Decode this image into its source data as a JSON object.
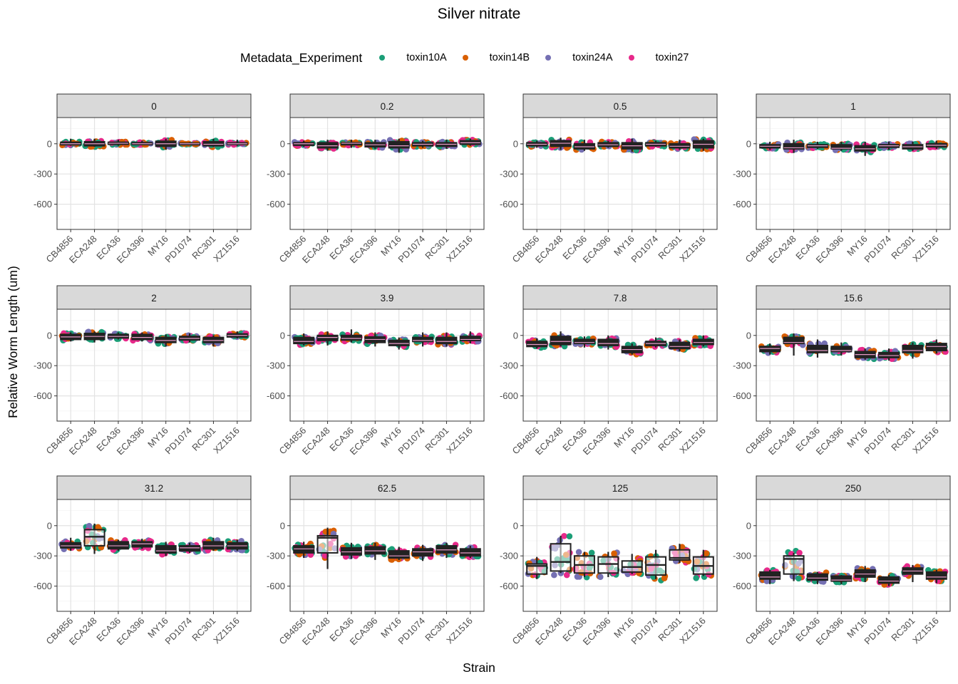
{
  "chart_data": {
    "type": "boxplot",
    "title": "Silver nitrate",
    "xlabel": "Strain",
    "ylabel": "Relative Worm Length (um)",
    "ylim": [
      -850,
      260
    ],
    "yticks": [
      0,
      -300,
      -600
    ],
    "ytick_labels": [
      "0",
      "-300",
      "-600"
    ],
    "grid": true,
    "legend": {
      "title": "Metadata_Experiment",
      "position": "top",
      "entries": [
        {
          "name": "toxin10A",
          "color": "#1B9E77"
        },
        {
          "name": "toxin14B",
          "color": "#D95F02"
        },
        {
          "name": "toxin24A",
          "color": "#7570B3"
        },
        {
          "name": "toxin27",
          "color": "#E7298A"
        }
      ]
    },
    "categories": [
      "CB4856",
      "ECA248",
      "ECA36",
      "ECA396",
      "MY16",
      "PD1074",
      "RC301",
      "XZ1516"
    ],
    "facets": [
      {
        "label": "0",
        "boxes": [
          [
            -20,
            -10,
            0,
            15,
            50
          ],
          [
            -30,
            -20,
            0,
            20,
            50
          ],
          [
            -20,
            -5,
            5,
            15,
            40
          ],
          [
            -15,
            -8,
            0,
            10,
            30
          ],
          [
            -60,
            -25,
            0,
            25,
            50
          ],
          [
            -10,
            -5,
            0,
            5,
            15
          ],
          [
            -30,
            -20,
            -5,
            20,
            50
          ],
          [
            -20,
            -5,
            0,
            8,
            40
          ]
        ]
      },
      {
        "label": "0.2",
        "boxes": [
          [
            -30,
            -15,
            0,
            10,
            30
          ],
          [
            -70,
            -40,
            -20,
            10,
            40
          ],
          [
            -40,
            -10,
            5,
            10,
            40
          ],
          [
            -50,
            -30,
            -10,
            10,
            40
          ],
          [
            -90,
            -40,
            -20,
            20,
            50
          ],
          [
            -40,
            -20,
            -5,
            10,
            30
          ],
          [
            -50,
            -25,
            -5,
            10,
            40
          ],
          [
            -20,
            -5,
            10,
            30,
            50
          ]
        ]
      },
      {
        "label": "0.5",
        "boxes": [
          [
            -40,
            -20,
            -5,
            10,
            30
          ],
          [
            -60,
            -25,
            5,
            30,
            60
          ],
          [
            -70,
            -50,
            -30,
            0,
            40
          ],
          [
            -40,
            -25,
            -10,
            10,
            30
          ],
          [
            -80,
            -50,
            -20,
            10,
            50
          ],
          [
            -30,
            -20,
            -5,
            10,
            30
          ],
          [
            -60,
            -40,
            -25,
            0,
            40
          ],
          [
            -70,
            -40,
            -5,
            30,
            50
          ]
        ]
      },
      {
        "label": "1",
        "boxes": [
          [
            -60,
            -40,
            -25,
            -10,
            20
          ],
          [
            -90,
            -50,
            -40,
            0,
            40
          ],
          [
            -50,
            -35,
            -20,
            -10,
            20
          ],
          [
            -70,
            -50,
            -45,
            -10,
            20
          ],
          [
            -120,
            -70,
            -50,
            -20,
            20
          ],
          [
            -60,
            -35,
            -20,
            -10,
            20
          ],
          [
            -70,
            -50,
            -30,
            -10,
            20
          ],
          [
            -50,
            -30,
            -15,
            0,
            30
          ]
        ]
      },
      {
        "label": "2",
        "boxes": [
          [
            -60,
            -40,
            -15,
            10,
            30
          ],
          [
            -70,
            -40,
            -10,
            20,
            40
          ],
          [
            -40,
            -25,
            -10,
            10,
            30
          ],
          [
            -60,
            -40,
            -20,
            10,
            30
          ],
          [
            -110,
            -70,
            -50,
            -20,
            10
          ],
          [
            -70,
            -45,
            -30,
            -10,
            20
          ],
          [
            -110,
            -70,
            -50,
            -20,
            0
          ],
          [
            -30,
            -15,
            0,
            15,
            40
          ]
        ]
      },
      {
        "label": "3.9",
        "boxes": [
          [
            -100,
            -80,
            -60,
            -20,
            20
          ],
          [
            -100,
            -50,
            -20,
            0,
            40
          ],
          [
            -70,
            -45,
            -30,
            0,
            60
          ],
          [
            -110,
            -70,
            -40,
            -15,
            30
          ],
          [
            -140,
            -100,
            -80,
            -50,
            -20
          ],
          [
            -110,
            -60,
            -50,
            -20,
            30
          ],
          [
            -110,
            -80,
            -60,
            -20,
            30
          ],
          [
            -80,
            -50,
            -40,
            -10,
            40
          ]
        ]
      },
      {
        "label": "7.8",
        "boxes": [
          [
            -130,
            -110,
            -90,
            -60,
            -30
          ],
          [
            -110,
            -90,
            -60,
            -10,
            40
          ],
          [
            -120,
            -80,
            -70,
            -40,
            -10
          ],
          [
            -140,
            -100,
            -80,
            -40,
            0
          ],
          [
            -190,
            -170,
            -140,
            -110,
            -80
          ],
          [
            -120,
            -100,
            -80,
            -60,
            -20
          ],
          [
            -160,
            -130,
            -110,
            -70,
            -40
          ],
          [
            -110,
            -90,
            -70,
            -40,
            0
          ]
        ]
      },
      {
        "label": "15.6",
        "boxes": [
          [
            -190,
            -160,
            -130,
            -110,
            -80
          ],
          [
            -200,
            -80,
            -70,
            -20,
            20
          ],
          [
            -220,
            -170,
            -150,
            -100,
            -40
          ],
          [
            -200,
            -160,
            -150,
            -110,
            -70
          ],
          [
            -240,
            -220,
            -190,
            -160,
            -130
          ],
          [
            -250,
            -220,
            -200,
            -170,
            -130
          ],
          [
            -230,
            -170,
            -150,
            -100,
            -70
          ],
          [
            -180,
            -150,
            -110,
            -80,
            -40
          ]
        ]
      },
      {
        "label": "31.2",
        "boxes": [
          [
            -250,
            -220,
            -200,
            -170,
            -120
          ],
          [
            -280,
            -200,
            -110,
            -40,
            20
          ],
          [
            -250,
            -230,
            -200,
            -160,
            -140
          ],
          [
            -230,
            -210,
            -180,
            -160,
            -130
          ],
          [
            -300,
            -270,
            -250,
            -200,
            -160
          ],
          [
            -270,
            -250,
            -220,
            -200,
            -170
          ],
          [
            -250,
            -230,
            -200,
            -160,
            -120
          ],
          [
            -250,
            -230,
            -200,
            -170,
            -140
          ]
        ]
      },
      {
        "label": "62.5",
        "boxes": [
          [
            -320,
            -270,
            -230,
            -200,
            -160
          ],
          [
            -430,
            -270,
            -120,
            -100,
            -20
          ],
          [
            -330,
            -290,
            -260,
            -220,
            -170
          ],
          [
            -340,
            -280,
            -250,
            -210,
            -170
          ],
          [
            -340,
            -320,
            -300,
            -250,
            -210
          ],
          [
            -350,
            -300,
            -260,
            -230,
            -190
          ],
          [
            -320,
            -270,
            -240,
            -200,
            -170
          ],
          [
            -320,
            -300,
            -270,
            -230,
            -200
          ]
        ]
      },
      {
        "label": "125",
        "boxes": [
          [
            -530,
            -480,
            -400,
            -380,
            -310
          ],
          [
            -470,
            -450,
            -360,
            -180,
            -100
          ],
          [
            -510,
            -470,
            -390,
            -300,
            -260
          ],
          [
            -510,
            -470,
            -380,
            -310,
            -260
          ],
          [
            -480,
            -460,
            -410,
            -350,
            -280
          ],
          [
            -530,
            -490,
            -390,
            -310,
            -240
          ],
          [
            -370,
            -340,
            -320,
            -240,
            -180
          ],
          [
            -500,
            -480,
            -400,
            -310,
            -240
          ]
        ]
      },
      {
        "label": "250",
        "boxes": [
          [
            -580,
            -530,
            -510,
            -460,
            -440
          ],
          [
            -550,
            -480,
            -330,
            -300,
            -270
          ],
          [
            -580,
            -540,
            -520,
            -480,
            -460
          ],
          [
            -580,
            -550,
            -540,
            -500,
            -490
          ],
          [
            -560,
            -510,
            -480,
            -440,
            -400
          ],
          [
            -600,
            -570,
            -550,
            -510,
            -490
          ],
          [
            -560,
            -480,
            -450,
            -420,
            -390
          ],
          [
            -570,
            -530,
            -510,
            -460,
            -440
          ]
        ]
      }
    ]
  }
}
